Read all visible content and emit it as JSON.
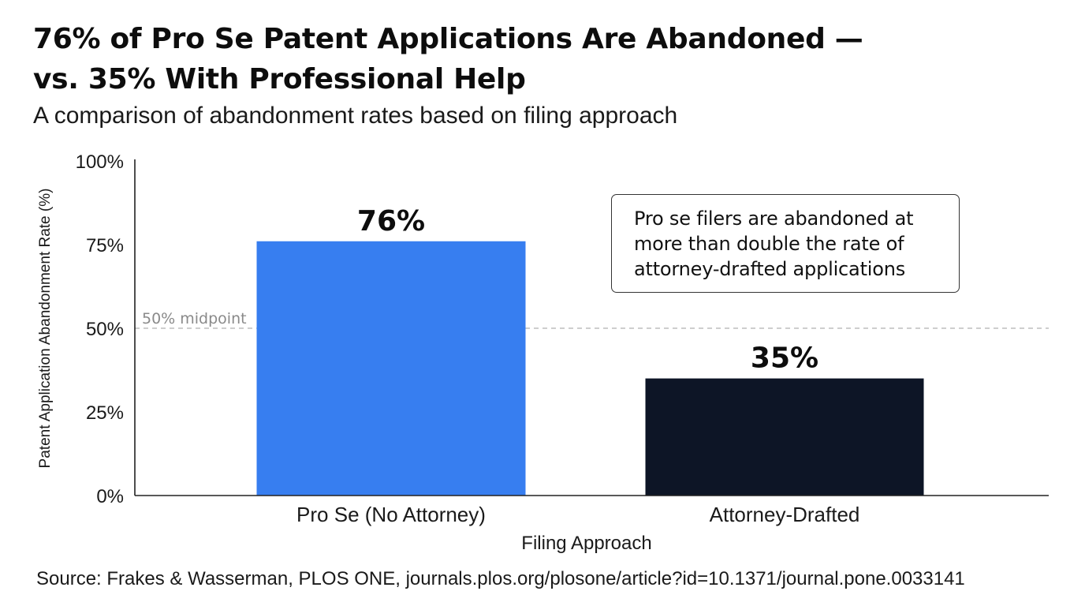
{
  "title_line_1": "76% of Pro Se Patent Applications Are Abandoned —",
  "title_line_2": "vs. 35% With Professional Help",
  "subtitle": "A comparison of abandonment rates based on filing approach",
  "source": "Source: Frakes & Wasserman, PLOS ONE, journals.plos.org/plosone/article?id=10.1371/journal.pone.0033141",
  "callout": "Pro se filers are abandoned at\nmore than double the rate of\nattorney-drafted applications",
  "colors": {
    "pro_se_bar": "#377ef0",
    "attorney_bar": "#0d1526",
    "reference_line": "#b0b0b0",
    "reference_label": "#8a8a8a"
  },
  "chart_data": {
    "type": "bar",
    "categories": [
      "Pro Se (No Attorney)",
      "Attorney-Drafted"
    ],
    "values": [
      76,
      35
    ],
    "data_labels": [
      "76%",
      "35%"
    ],
    "xlabel": "Filing Approach",
    "ylabel": "Patent Application Abandonment Rate (%)",
    "ylim": [
      0,
      100
    ],
    "yticks": [
      0,
      25,
      50,
      75,
      100
    ],
    "ytick_labels": [
      "0%",
      "25%",
      "50%",
      "75%",
      "100%"
    ],
    "reference_line": {
      "value": 50,
      "label": "50% midpoint",
      "style": "dashed"
    },
    "grid": false,
    "legend": "none"
  }
}
